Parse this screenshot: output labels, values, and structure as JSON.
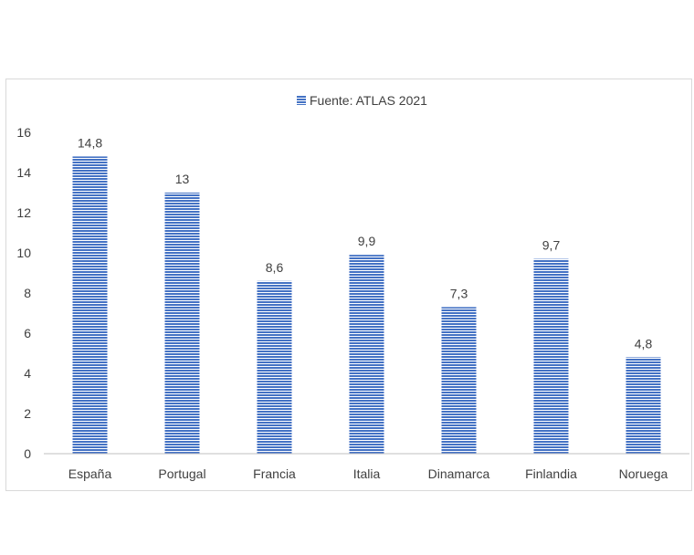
{
  "chart_data": {
    "type": "bar",
    "categories": [
      "España",
      "Portugal",
      "Francia",
      "Italia",
      "Dinamarca",
      "Finlandia",
      "Noruega"
    ],
    "series": [
      {
        "name": "Fuente: ATLAS 2021",
        "values": [
          14.8,
          13,
          8.6,
          9.9,
          7.3,
          9.7,
          4.8
        ]
      }
    ],
    "data_labels": [
      "14,8",
      "13",
      "8,6",
      "9,9",
      "7,3",
      "9,7",
      "4,8"
    ],
    "y_ticks": [
      0,
      2,
      4,
      6,
      8,
      10,
      12,
      14,
      16
    ],
    "ylim": [
      0,
      16
    ],
    "grid": false,
    "legend_position": "top",
    "bar_color": "#4472c4",
    "bar_pattern": "horizontal-stripes"
  }
}
